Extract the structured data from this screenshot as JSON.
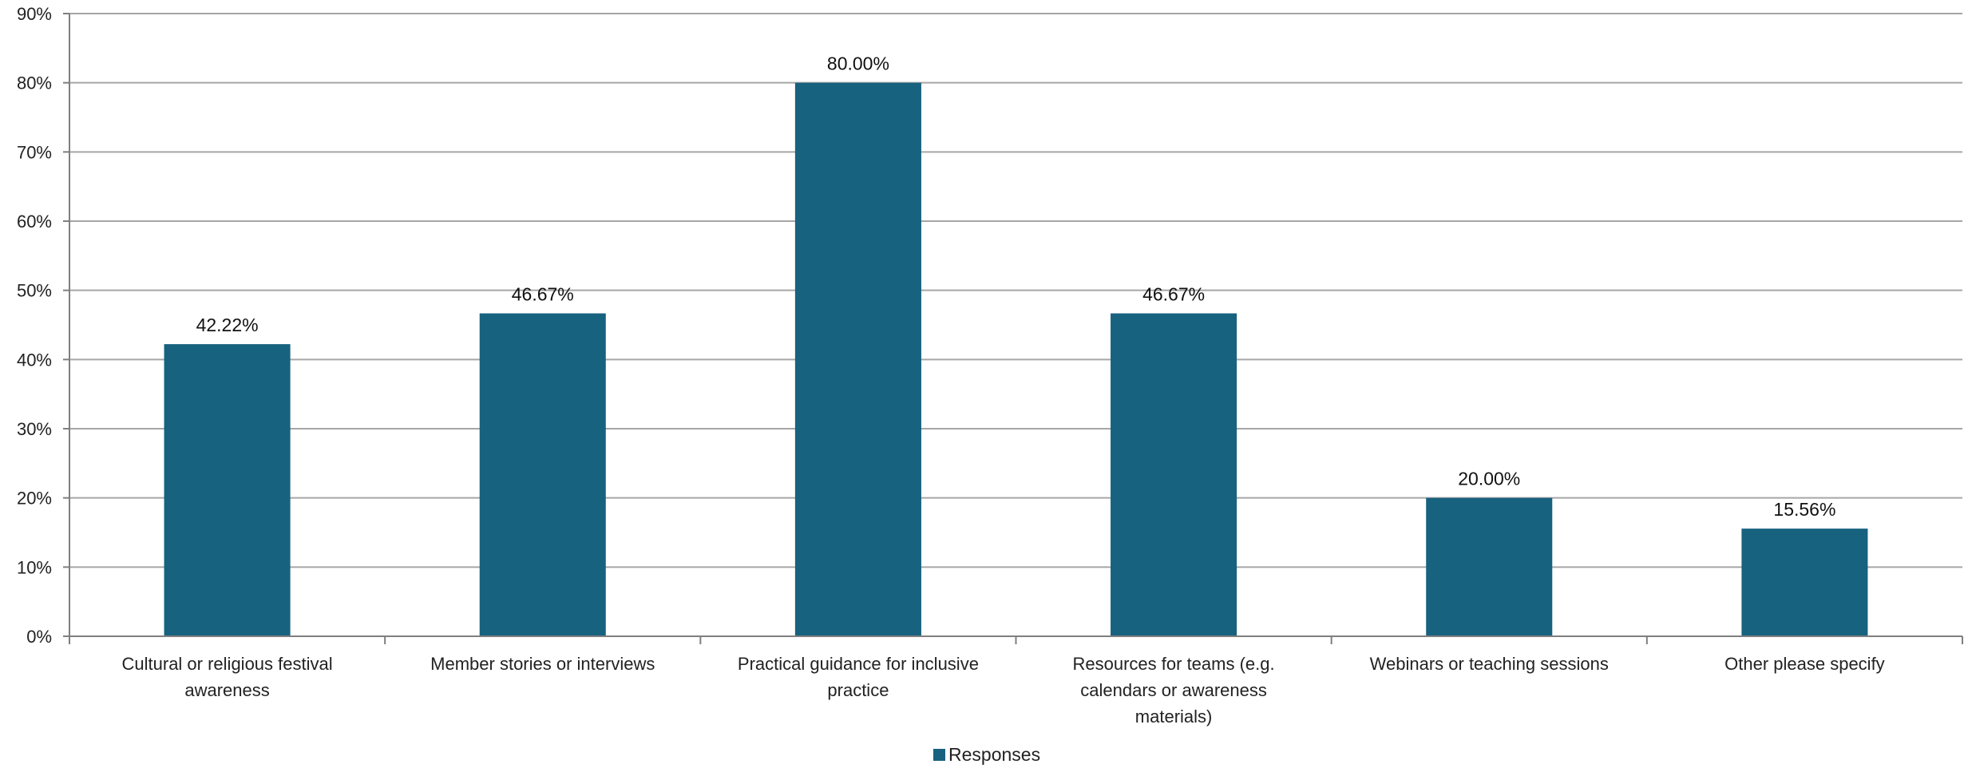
{
  "chart_data": {
    "type": "bar",
    "title": "",
    "xlabel": "",
    "ylabel": "",
    "categories": [
      [
        "Cultural or religious festival",
        "awareness"
      ],
      [
        "Member stories or interviews"
      ],
      [
        "Practical guidance for inclusive",
        "practice"
      ],
      [
        "Resources for teams (e.g.",
        "calendars or awareness",
        "materials)"
      ],
      [
        "Webinars or teaching sessions"
      ],
      [
        "Other please specify"
      ]
    ],
    "series": [
      {
        "name": "Responses",
        "color": "#17627F",
        "values": [
          42.22,
          46.67,
          80.0,
          46.67,
          20.0,
          15.56
        ],
        "labels": [
          "42.22%",
          "46.67%",
          "80.00%",
          "46.67%",
          "20.00%",
          "15.56%"
        ]
      }
    ],
    "ylim": [
      0,
      90
    ],
    "yticks": [
      0,
      10,
      20,
      30,
      40,
      50,
      60,
      70,
      80,
      90
    ],
    "ytick_labels": [
      "0%",
      "10%",
      "20%",
      "30%",
      "40%",
      "50%",
      "60%",
      "70%",
      "80%",
      "90%"
    ],
    "grid": true,
    "legend_position": "bottom-center",
    "colors": {
      "bar": "#17627F",
      "grid": "#A6A6A6",
      "axis": "#7F7F7F"
    }
  }
}
